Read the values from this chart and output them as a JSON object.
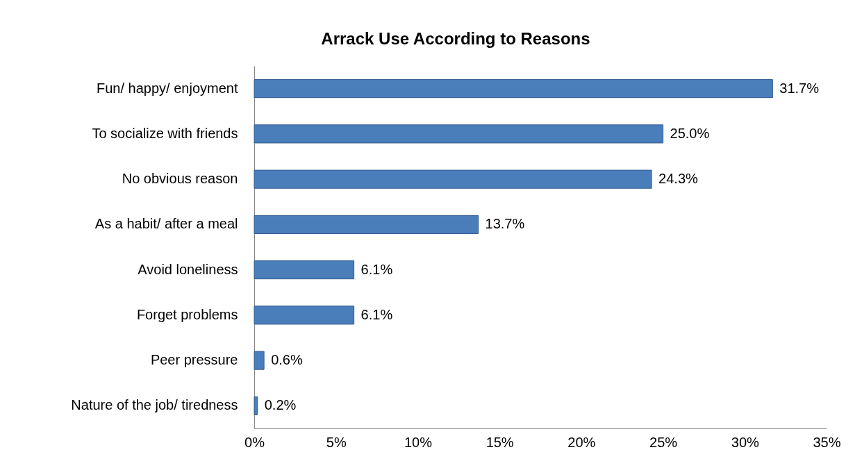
{
  "chart_data": {
    "type": "bar",
    "orientation": "horizontal",
    "title": "Arrack  Use According to Reasons",
    "categories": [
      "Fun/ happy/ enjoyment",
      "To socialize with friends",
      "No obvious reason",
      "As a habit/ after a meal",
      "Avoid loneliness",
      "Forget problems",
      "Peer pressure",
      "Nature of the job/ tiredness"
    ],
    "values": [
      31.7,
      25.0,
      24.3,
      13.7,
      6.1,
      6.1,
      0.6,
      0.2
    ],
    "value_labels": [
      "31.7%",
      "25.0%",
      "24.3%",
      "13.7%",
      "6.1%",
      "6.1%",
      "0.6%",
      "0.2%"
    ],
    "color": "#4a7ebb",
    "xlim": [
      0,
      35
    ],
    "xticks": [
      {
        "value": 0,
        "label": "0%"
      },
      {
        "value": 5,
        "label": "5%"
      },
      {
        "value": 10,
        "label": "10%"
      },
      {
        "value": 15,
        "label": "15%"
      },
      {
        "value": 20,
        "label": "20%"
      },
      {
        "value": 25,
        "label": "25%"
      },
      {
        "value": 30,
        "label": "30%"
      },
      {
        "value": 35,
        "label": "35%"
      }
    ],
    "grid": false
  }
}
